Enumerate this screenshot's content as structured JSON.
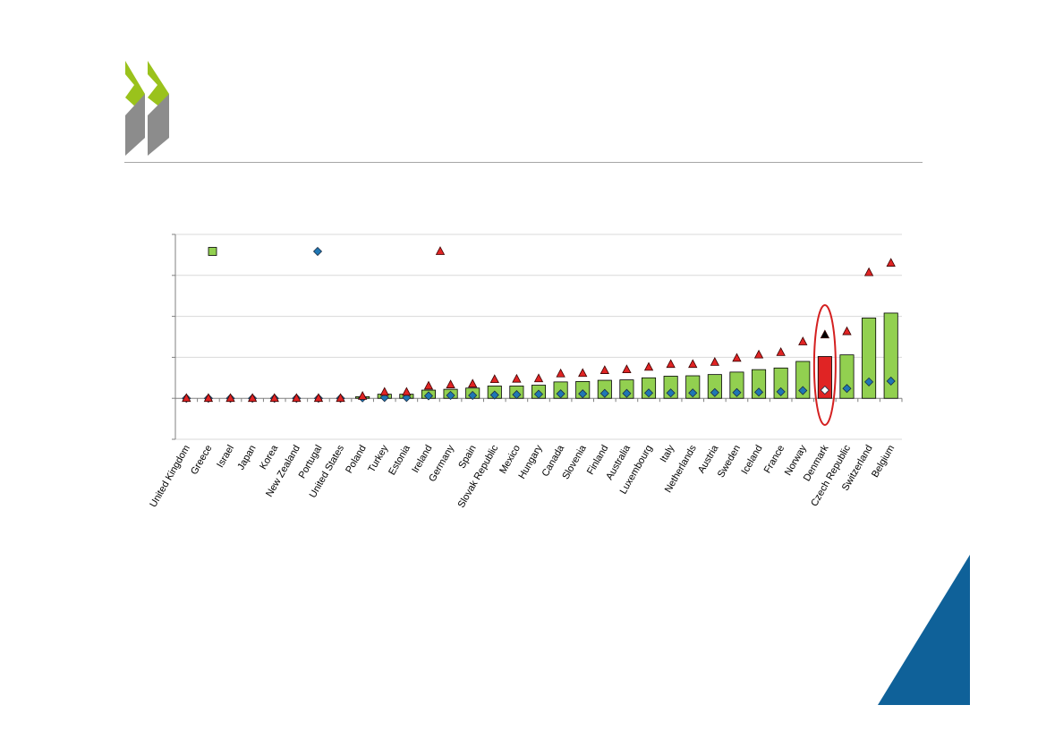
{
  "branding": {
    "logo_icon": "oecd-chevrons-icon",
    "colors": {
      "chevron_green": "#9ac21c",
      "chevron_gray": "#8c8c8c",
      "corner_blue": "#0f6199"
    }
  },
  "chart_data": {
    "type": "bar",
    "title": "",
    "xlabel": "",
    "ylabel": "",
    "grid": true,
    "legend_position": "top",
    "ylim": [
      -1,
      4
    ],
    "y_ticks": [
      -1,
      0,
      1,
      2,
      3,
      4
    ],
    "y_tick_labels_visible": false,
    "highlight_category": "Denmark",
    "highlight_annotation": "red-ellipse",
    "categories": [
      "United Kingdom",
      "Greece",
      "Israel",
      "Japan",
      "Korea",
      "New Zealand",
      "Portugal",
      "United States",
      "Poland",
      "Turkey",
      "Estonia",
      "Ireland",
      "Germany",
      "Spain",
      "Slovak Republic",
      "Mexico",
      "Hungary",
      "Canada",
      "Slovenia",
      "Finland",
      "Australia",
      "Luxembourg",
      "Italy",
      "Netherlands",
      "Austria",
      "Sweden",
      "Iceland",
      "France",
      "Norway",
      "Denmark",
      "Czech Republic",
      "Switzerland",
      "Belgium"
    ],
    "series": [
      {
        "marker": "bar",
        "color": "#92d050",
        "highlight_color": "#e02424",
        "values": [
          0,
          0,
          0,
          0,
          0,
          0,
          0,
          0,
          0.04,
          0.1,
          0.1,
          0.2,
          0.22,
          0.25,
          0.3,
          0.3,
          0.32,
          0.4,
          0.41,
          0.44,
          0.45,
          0.5,
          0.54,
          0.55,
          0.58,
          0.64,
          0.7,
          0.74,
          0.9,
          1.02,
          1.06,
          1.96,
          2.08
        ]
      },
      {
        "marker": "diamond",
        "color": "#1f77b4",
        "highlight_color": "#ffffff",
        "values": [
          0,
          0,
          0,
          0,
          0,
          0,
          0,
          0,
          0.01,
          0.02,
          0.02,
          0.06,
          0.07,
          0.07,
          0.08,
          0.09,
          0.1,
          0.11,
          0.11,
          0.12,
          0.12,
          0.13,
          0.13,
          0.13,
          0.14,
          0.14,
          0.15,
          0.16,
          0.19,
          0.2,
          0.24,
          0.4,
          0.42
        ]
      },
      {
        "marker": "triangle",
        "color": "#e02424",
        "highlight_color": "#000000",
        "values": [
          0,
          0,
          0,
          0,
          0,
          0,
          0,
          0,
          0.05,
          0.15,
          0.15,
          0.3,
          0.33,
          0.35,
          0.46,
          0.47,
          0.48,
          0.6,
          0.61,
          0.68,
          0.7,
          0.76,
          0.83,
          0.83,
          0.88,
          0.98,
          1.06,
          1.12,
          1.38,
          1.55,
          1.63,
          3.07,
          3.3
        ]
      }
    ]
  }
}
